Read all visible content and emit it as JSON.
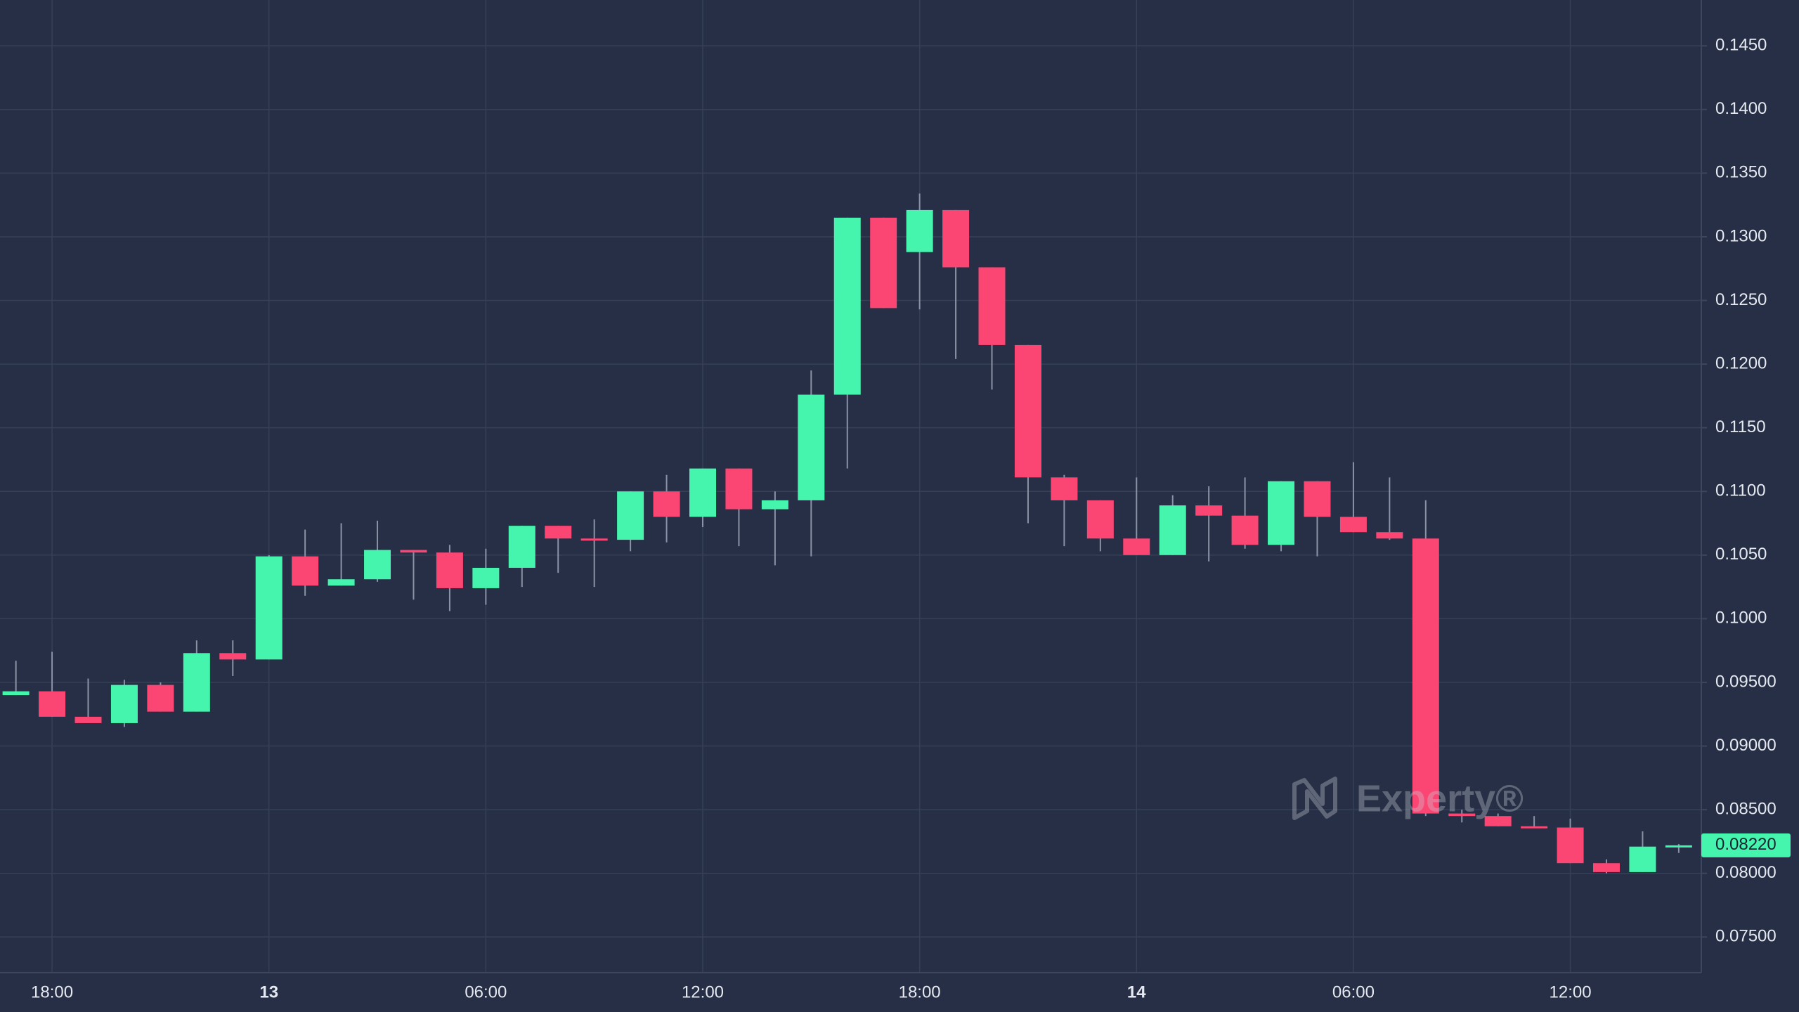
{
  "chart_data": {
    "type": "candlestick",
    "x": [
      null,
      "18:00",
      null,
      null,
      null,
      null,
      null,
      "13",
      null,
      null,
      null,
      null,
      null,
      "06:00",
      null,
      null,
      null,
      null,
      null,
      "12:00",
      null,
      null,
      null,
      null,
      null,
      "18:00",
      null,
      null,
      null,
      null,
      null,
      "14",
      null,
      null,
      null,
      null,
      null,
      "06:00",
      null,
      null,
      null,
      null,
      null,
      "12:00",
      null,
      null,
      null
    ],
    "bold_x_labels": [
      "13",
      "14"
    ],
    "open": [
      0.094,
      0.0943,
      0.0923,
      0.0918,
      0.0948,
      0.0927,
      0.0973,
      0.0968,
      0.1049,
      0.1026,
      0.1031,
      0.1054,
      0.1052,
      0.1024,
      0.104,
      0.1073,
      0.1063,
      0.1062,
      0.11,
      0.108,
      0.1118,
      0.1086,
      0.1093,
      0.1176,
      0.1315,
      0.1288,
      0.1321,
      0.1276,
      0.1215,
      0.1111,
      0.1093,
      0.1063,
      0.105,
      0.1089,
      0.1081,
      0.1058,
      0.1108,
      0.108,
      0.1068,
      0.1063,
      0.0847,
      0.0845,
      0.0837,
      0.0836,
      0.0808,
      0.0801,
      0.0821
    ],
    "high": [
      0.0967,
      0.0974,
      0.0953,
      0.0952,
      0.095,
      0.0983,
      0.0983,
      0.105,
      0.107,
      0.1075,
      0.1077,
      0.1054,
      0.1058,
      0.1055,
      0.1073,
      0.1073,
      0.1078,
      0.11,
      0.1113,
      0.1118,
      0.1118,
      0.11,
      0.1195,
      0.1315,
      0.1315,
      0.1334,
      0.1321,
      0.1276,
      0.1215,
      0.1113,
      0.1093,
      0.1111,
      0.1097,
      0.1104,
      0.1111,
      0.1108,
      0.1108,
      0.1123,
      0.1111,
      0.1093,
      0.085,
      0.0847,
      0.0845,
      0.0843,
      0.0811,
      0.0833,
      0.0823
    ],
    "low": [
      0.094,
      0.0923,
      0.0918,
      0.0915,
      0.0927,
      0.0927,
      0.0955,
      0.0968,
      0.1018,
      0.1026,
      0.1029,
      0.1015,
      0.1006,
      0.1011,
      0.1025,
      0.1036,
      0.1025,
      0.1053,
      0.106,
      0.1072,
      0.1057,
      0.1042,
      0.1049,
      0.1118,
      0.1244,
      0.1243,
      0.1204,
      0.118,
      0.1075,
      0.1057,
      0.1053,
      0.105,
      0.105,
      0.1045,
      0.1055,
      0.1053,
      0.1049,
      0.1068,
      0.1062,
      0.0845,
      0.084,
      0.0837,
      0.0836,
      0.0808,
      0.08,
      0.0801,
      0.0816
    ],
    "close": [
      0.0943,
      0.0923,
      0.0918,
      0.0948,
      0.0927,
      0.0973,
      0.0968,
      0.1049,
      0.1026,
      0.1031,
      0.1054,
      0.1052,
      0.1024,
      0.104,
      0.1073,
      0.1063,
      0.1062,
      0.11,
      0.108,
      0.1118,
      0.1086,
      0.1093,
      0.1176,
      0.1315,
      0.1244,
      0.1321,
      0.1276,
      0.1215,
      0.1111,
      0.1093,
      0.1063,
      0.105,
      0.1089,
      0.1081,
      0.1058,
      0.1108,
      0.108,
      0.1068,
      0.1063,
      0.0847,
      0.0845,
      0.0837,
      0.0836,
      0.0808,
      0.0801,
      0.0821,
      0.0822
    ],
    "up_color": "#45f5ad",
    "down_color": "#fb4573",
    "wick_color": "#8a92a6",
    "ylim": [
      0.0722,
      0.1486
    ],
    "yticks": [
      {
        "value": 0.075,
        "label": "0.07500"
      },
      {
        "value": 0.08,
        "label": "0.08000"
      },
      {
        "value": 0.085,
        "label": "0.08500"
      },
      {
        "value": 0.09,
        "label": "0.09000"
      },
      {
        "value": 0.095,
        "label": "0.09500"
      },
      {
        "value": 0.1,
        "label": "0.1000"
      },
      {
        "value": 0.105,
        "label": "0.1050"
      },
      {
        "value": 0.11,
        "label": "0.1100"
      },
      {
        "value": 0.115,
        "label": "0.1150"
      },
      {
        "value": 0.12,
        "label": "0.1200"
      },
      {
        "value": 0.125,
        "label": "0.1250"
      },
      {
        "value": 0.13,
        "label": "0.1300"
      },
      {
        "value": 0.135,
        "label": "0.1350"
      },
      {
        "value": 0.14,
        "label": "0.1400"
      },
      {
        "value": 0.145,
        "label": "0.1450"
      }
    ],
    "grid": true,
    "last_price": {
      "value": 0.0822,
      "label": "0.08220"
    },
    "watermark": "Experty®"
  }
}
